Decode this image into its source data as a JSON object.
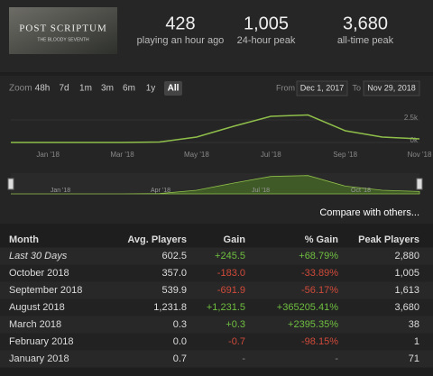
{
  "header": {
    "logo": "POST SCRIPTUM",
    "logo_sub": "THE BLOODY SEVENTH",
    "stats": [
      {
        "value": "428",
        "label": "playing an hour ago"
      },
      {
        "value": "1,005",
        "label": "24-hour peak"
      },
      {
        "value": "3,680",
        "label": "all-time peak"
      }
    ]
  },
  "controls": {
    "zoom": "Zoom",
    "buttons": [
      "48h",
      "7d",
      "1m",
      "3m",
      "6m",
      "1y",
      "All"
    ],
    "from": "From",
    "from_date": "Dec 1, 2017",
    "to": "To",
    "to_date": "Nov 29, 2018"
  },
  "chart_data": {
    "type": "line",
    "color": "#8fbf4a",
    "categories": [
      null,
      "Jan '18",
      null,
      "Mar '18",
      null,
      "May '18",
      null,
      "Jul '18",
      null,
      "Sep '18",
      null,
      "Nov '18"
    ],
    "values": [
      0,
      0,
      0,
      0,
      50,
      600,
      1800,
      2900,
      3050,
      1300,
      600,
      400
    ],
    "ylim": [
      0,
      4100
    ],
    "yticks": [
      {
        "value": 2500,
        "label": "2.5k"
      },
      {
        "value": 0,
        "label": "0k"
      }
    ],
    "grid": true,
    "navigator_labels": [
      "Jan '18",
      "Apr '18",
      "Jul '18",
      "Oct '18"
    ]
  },
  "compare": "Compare with others...",
  "table": {
    "header": [
      "Month",
      "Avg. Players",
      "Gain",
      "% Gain",
      "Peak Players"
    ],
    "rows": [
      [
        "Last 30 Days",
        "602.5",
        "+245.5",
        "+68.79%",
        "2,880"
      ],
      [
        "October 2018",
        "357.0",
        "-183.0",
        "-33.89%",
        "1,005"
      ],
      [
        "September 2018",
        "539.9",
        "-691.9",
        "-56.17%",
        "1,613"
      ],
      [
        "August 2018",
        "1,231.8",
        "+1,231.5",
        "+365205.41%",
        "3,680"
      ],
      [
        "March 2018",
        "0.3",
        "+0.3",
        "+2395.35%",
        "38"
      ],
      [
        "February 2018",
        "0.0",
        "-0.7",
        "-98.15%",
        "1"
      ],
      [
        "January 2018",
        "0.7",
        "-",
        "-",
        "71"
      ]
    ]
  }
}
